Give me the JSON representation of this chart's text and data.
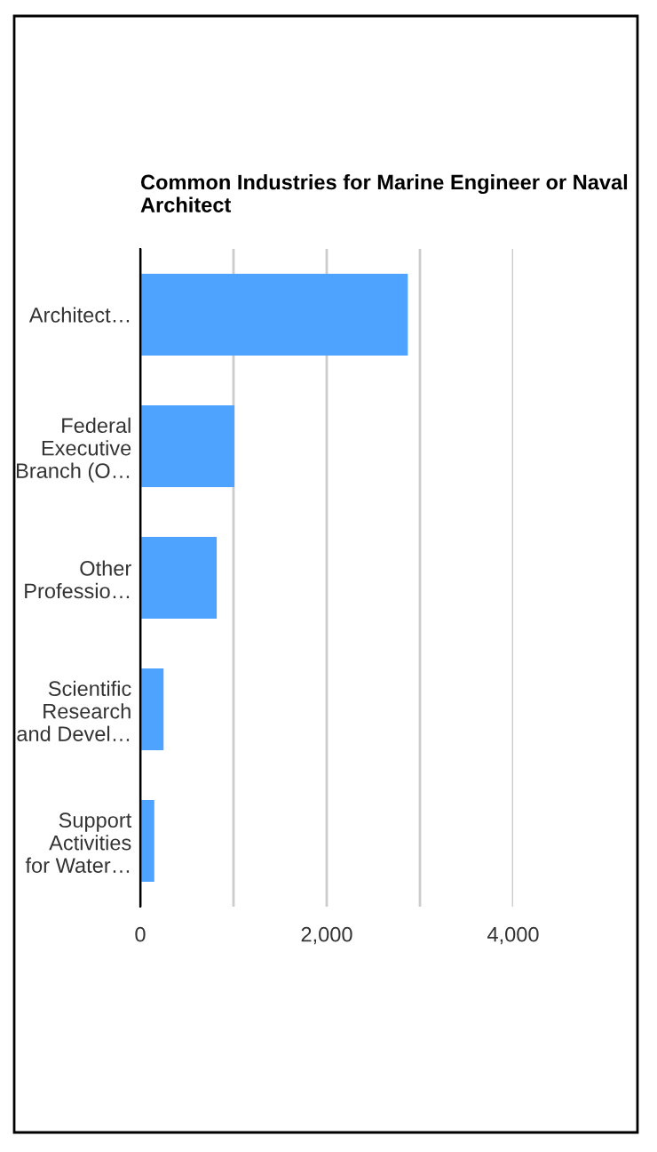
{
  "chart_data": {
    "type": "bar",
    "orientation": "horizontal",
    "title": "Common Industries for Marine Engineer or Naval Architect",
    "categories": [
      "Architect…",
      "Federal Executive Branch (O…",
      "Other Professio…",
      "Scientific Research and Devel…",
      "Support Activities for Water…"
    ],
    "values": [
      2870,
      1010,
      820,
      250,
      150
    ],
    "color": "#4da3ff",
    "xlim": [
      0,
      4000
    ],
    "xticks": [
      0,
      {
        "value": 1000,
        "label": null
      },
      {
        "value": 2000,
        "label": "2,000"
      },
      {
        "value": 3000,
        "label": null
      },
      {
        "value": 4000,
        "label": "4,000"
      }
    ],
    "grid": "x",
    "legend": false
  }
}
